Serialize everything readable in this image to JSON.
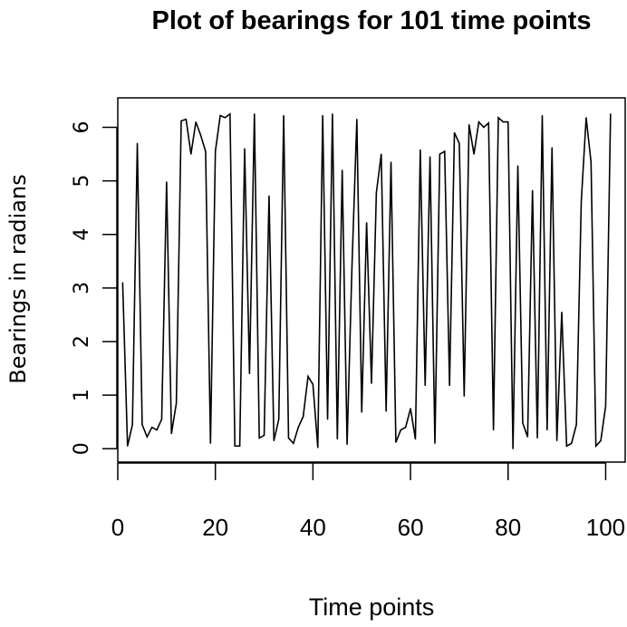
{
  "chart_data": {
    "type": "line",
    "title": "Plot of bearings for 101 time points",
    "xlabel": "Time points",
    "ylabel": "Bearings in radians",
    "xlim": [
      0,
      104
    ],
    "ylim": [
      -0.25,
      6.55
    ],
    "x_ticks": [
      0,
      20,
      40,
      60,
      80,
      100
    ],
    "y_ticks": [
      0,
      1,
      2,
      3,
      4,
      5,
      6
    ],
    "x_tick_labels": [
      "0",
      "20",
      "40",
      "60",
      "80",
      "100"
    ],
    "y_tick_labels": [
      "0",
      "1",
      "2",
      "3",
      "4",
      "5",
      "6"
    ],
    "grid": false,
    "series": [
      {
        "values": [
          3.1,
          0.05,
          0.45,
          5.7,
          0.45,
          0.22,
          0.4,
          0.35,
          0.55,
          4.98,
          0.28,
          0.85,
          6.12,
          6.15,
          5.5,
          6.1,
          5.85,
          5.55,
          0.1,
          5.55,
          6.22,
          6.18,
          6.25,
          0.05,
          0.05,
          5.6,
          1.4,
          6.25,
          0.2,
          0.25,
          4.72,
          0.15,
          0.55,
          6.22,
          0.2,
          0.1,
          0.4,
          0.6,
          1.35,
          1.2,
          0.02,
          6.22,
          0.55,
          6.25,
          0.18,
          5.2,
          0.08,
          3.4,
          6.15,
          0.68,
          4.22,
          1.22,
          4.78,
          5.5,
          0.7,
          5.35,
          0.12,
          0.35,
          0.4,
          0.75,
          0.18,
          5.58,
          1.18,
          5.45,
          0.1,
          5.5,
          5.55,
          1.18,
          5.9,
          5.7,
          0.98,
          6.05,
          5.5,
          6.1,
          6.0,
          6.08,
          0.35,
          6.18,
          6.1,
          6.1,
          0.0,
          5.28,
          0.48,
          0.22,
          4.82,
          0.2,
          6.22,
          0.35,
          5.62,
          0.15,
          2.55,
          0.05,
          0.1,
          0.45,
          4.62,
          6.18,
          5.35,
          0.05,
          0.15,
          0.8,
          6.25
        ],
        "color": "#000000"
      }
    ]
  }
}
